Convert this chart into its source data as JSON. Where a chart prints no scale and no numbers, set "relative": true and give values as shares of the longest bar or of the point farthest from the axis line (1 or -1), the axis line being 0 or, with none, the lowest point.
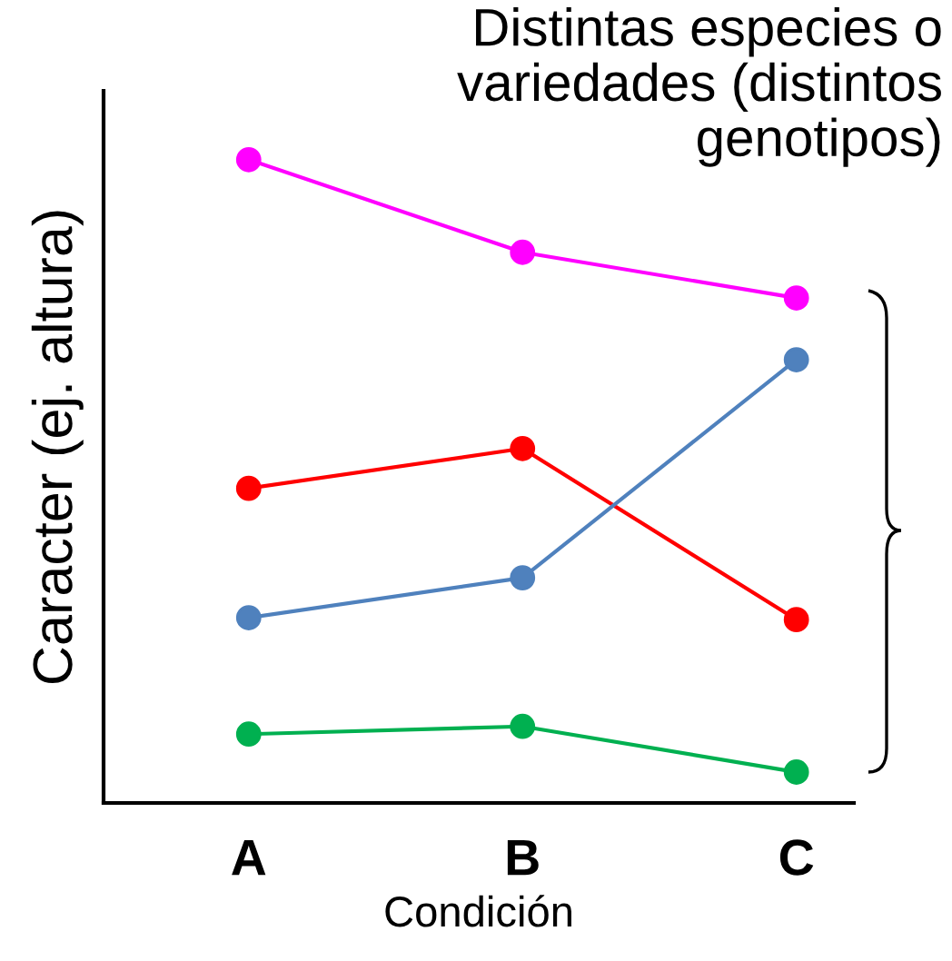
{
  "chart_data": {
    "type": "line",
    "relative": true,
    "xlabel": "Condición",
    "ylabel": "Caracter (ej. altura)",
    "categories": [
      "A",
      "B",
      "C"
    ],
    "series": [
      {
        "color": "#ff00ff",
        "values": [
          1,
          0.856,
          0.785
        ]
      },
      {
        "color": "#ff0000",
        "values": [
          0.489,
          0.551,
          0.285
        ]
      },
      {
        "color": "#4f81bd",
        "values": [
          0.288,
          0.35,
          0.689
        ]
      },
      {
        "color": "#00b050",
        "values": [
          0.107,
          0.119,
          0.048
        ]
      }
    ],
    "marker": "circle",
    "line_style": "solid",
    "grid": false,
    "legend": false,
    "annotations": [
      "Distintas especies o\nvariedades (distintos\ngenotipos)"
    ]
  }
}
